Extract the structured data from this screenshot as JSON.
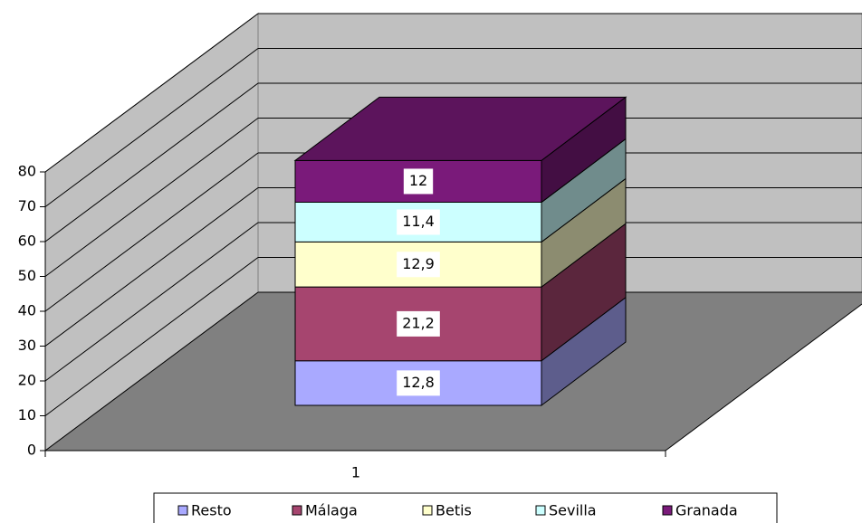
{
  "chart_data": {
    "type": "bar3d_stacked",
    "categories": [
      "1"
    ],
    "series": [
      {
        "name": "Resto",
        "color": "#a9a9ff",
        "values": [
          12.8
        ],
        "value_labels": [
          "12,8"
        ]
      },
      {
        "name": "Málaga",
        "color": "#a6456f",
        "values": [
          21.2
        ],
        "value_labels": [
          "21,2"
        ]
      },
      {
        "name": "Betis",
        "color": "#ffffcc",
        "values": [
          12.9
        ],
        "value_labels": [
          "12,9"
        ]
      },
      {
        "name": "Sevilla",
        "color": "#ccffff",
        "values": [
          11.4
        ],
        "value_labels": [
          "11,4"
        ]
      },
      {
        "name": "Granada",
        "color": "#7a1a7a",
        "values": [
          12
        ]
      }
    ],
    "ylim": [
      0,
      80
    ],
    "yticks": [
      0,
      10,
      20,
      30,
      40,
      50,
      60,
      70,
      80
    ],
    "grid": true,
    "legend": "bottom"
  }
}
